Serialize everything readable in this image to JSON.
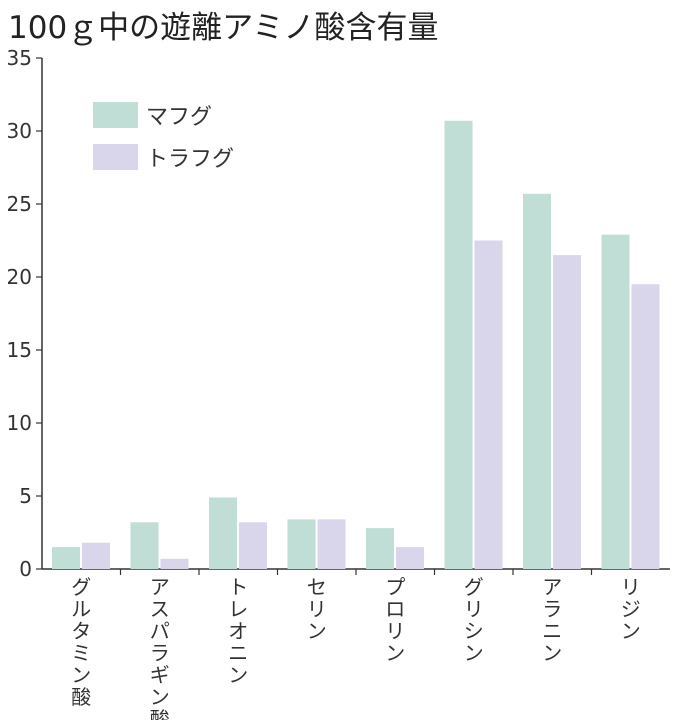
{
  "title": "100ｇ中の遊離アミノ酸含有量",
  "colors": {
    "series_1": "#c1ded6",
    "series_2": "#d9d6ec",
    "axis": "#333333"
  },
  "chart_data": {
    "type": "bar",
    "title": "100ｇ中の遊離アミノ酸含有量",
    "xlabel": "",
    "ylabel": "",
    "ylim": [
      0,
      35
    ],
    "yticks": [
      0,
      5,
      10,
      15,
      20,
      25,
      30,
      35
    ],
    "categories": [
      "グルタミン酸",
      "アスパラギン酸",
      "トレオニン",
      "セリン",
      "プロリン",
      "グリシン",
      "アラニン",
      "リジン"
    ],
    "series": [
      {
        "name": "マフグ",
        "values": [
          1.5,
          3.2,
          4.9,
          3.4,
          2.8,
          30.7,
          25.7,
          22.9
        ]
      },
      {
        "name": "トラフグ",
        "values": [
          1.8,
          0.7,
          3.2,
          3.4,
          1.5,
          22.5,
          21.5,
          19.5
        ]
      }
    ],
    "legend": {
      "position": "top-left"
    },
    "grid": false
  }
}
